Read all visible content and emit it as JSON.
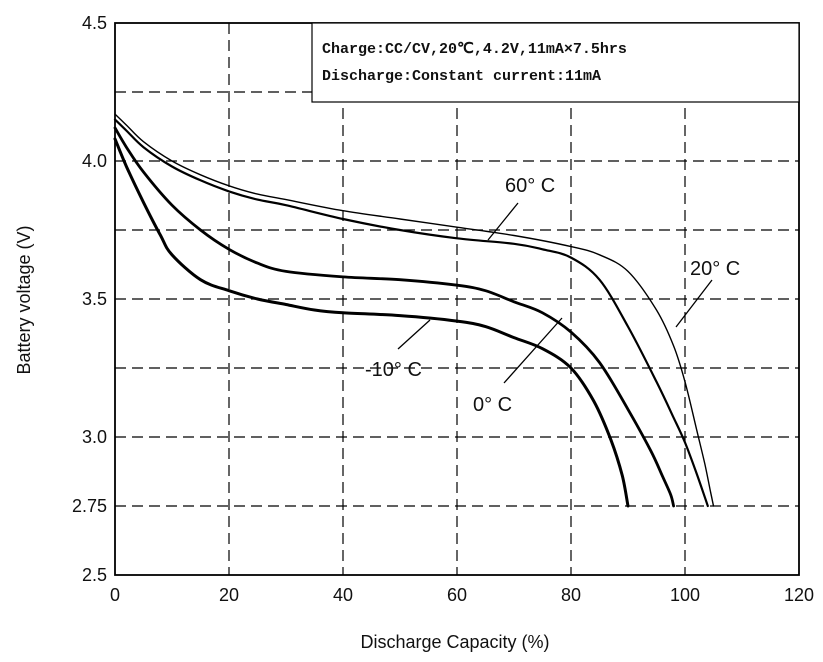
{
  "chart_data": {
    "type": "line",
    "xlabel": "Discharge Capacity (%)",
    "ylabel": "Battery voltage (V)",
    "xlim": [
      0,
      120
    ],
    "ylim": [
      2.5,
      4.5
    ],
    "xticks": [
      0,
      20,
      40,
      60,
      80,
      100,
      120
    ],
    "yticks": [
      2.5,
      2.75,
      3.0,
      3.5,
      4.0,
      4.5
    ],
    "ytick_labels": [
      "2.5",
      "2.75",
      "3.0",
      "3.5",
      "4.0",
      "4.5"
    ],
    "grid": "dashed",
    "legend_box": {
      "line1": "Charge:CC/CV,20℃,4.2V,11mA×7.5hrs",
      "line2": "Discharge:Constant current:11mA",
      "placement": "top-right"
    },
    "series": [
      {
        "name": "60° C",
        "stroke": 1.4,
        "x": [
          0,
          2,
          5,
          10,
          15,
          20,
          25,
          30,
          40,
          50,
          60,
          70,
          80,
          85,
          90,
          95,
          98,
          100,
          102,
          103.5,
          104.5,
          105
        ],
        "y": [
          4.17,
          4.13,
          4.07,
          4.0,
          3.95,
          3.91,
          3.88,
          3.86,
          3.82,
          3.79,
          3.76,
          3.73,
          3.69,
          3.66,
          3.6,
          3.46,
          3.33,
          3.2,
          3.03,
          2.9,
          2.8,
          2.75
        ]
      },
      {
        "name": "20° C",
        "stroke": 2.2,
        "x": [
          0,
          2,
          5,
          10,
          15,
          20,
          25,
          30,
          40,
          50,
          60,
          70,
          75,
          80,
          85,
          90,
          95,
          98,
          100,
          102,
          103.5,
          104
        ],
        "y": [
          4.15,
          4.11,
          4.05,
          3.98,
          3.93,
          3.89,
          3.86,
          3.84,
          3.79,
          3.75,
          3.72,
          3.7,
          3.68,
          3.65,
          3.57,
          3.4,
          3.2,
          3.07,
          2.98,
          2.87,
          2.78,
          2.75
        ]
      },
      {
        "name": "0° C",
        "stroke": 2.8,
        "x": [
          0,
          2,
          5,
          10,
          15,
          20,
          25,
          30,
          40,
          50,
          60,
          65,
          70,
          75,
          80,
          85,
          90,
          94,
          96,
          97.5,
          98
        ],
        "y": [
          4.12,
          4.05,
          3.96,
          3.84,
          3.75,
          3.68,
          3.63,
          3.6,
          3.58,
          3.57,
          3.55,
          3.53,
          3.49,
          3.45,
          3.38,
          3.27,
          3.1,
          2.95,
          2.86,
          2.79,
          2.75
        ]
      },
      {
        "name": "-10° C",
        "stroke": 3.0,
        "x": [
          0,
          2,
          5,
          8,
          10,
          15,
          20,
          25,
          30,
          35,
          40,
          50,
          60,
          65,
          70,
          75,
          80,
          84,
          87,
          89,
          90
        ],
        "y": [
          4.08,
          3.98,
          3.85,
          3.73,
          3.66,
          3.57,
          3.53,
          3.5,
          3.48,
          3.46,
          3.45,
          3.44,
          3.42,
          3.4,
          3.36,
          3.32,
          3.25,
          3.13,
          2.99,
          2.86,
          2.75
        ]
      }
    ]
  },
  "labels": {
    "s60": "60° C",
    "s20": "20° C",
    "s0": "0° C",
    "sm10": "-10° C"
  }
}
